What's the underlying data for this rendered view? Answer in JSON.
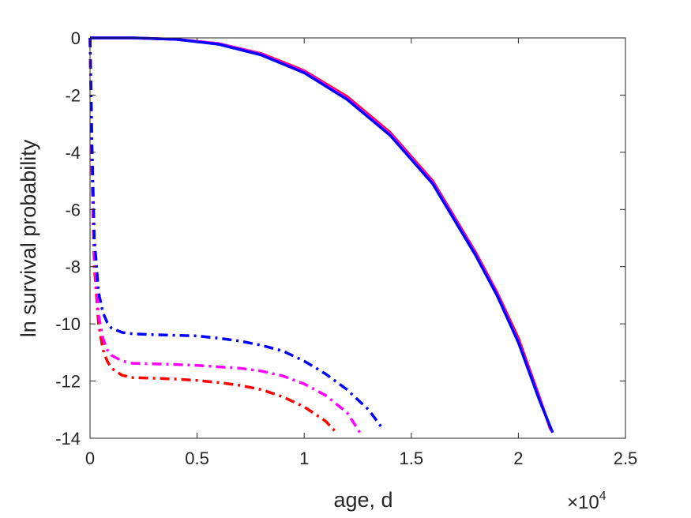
{
  "chart_data": {
    "type": "line",
    "title": "",
    "xlabel": "age, d",
    "ylabel": "ln survival probability",
    "x_exponent_label": {
      "base": "×10",
      "exponent": "4"
    },
    "xlim": [
      0,
      2.5
    ],
    "ylim": [
      -14,
      0
    ],
    "x_ticks": [
      0,
      0.5,
      1,
      1.5,
      2,
      2.5
    ],
    "x_tick_labels": [
      "0",
      "0.5",
      "1",
      "1.5",
      "2",
      "2.5"
    ],
    "y_ticks": [
      0,
      -2,
      -4,
      -6,
      -8,
      -10,
      -12,
      -14
    ],
    "y_tick_labels": [
      "0",
      "-2",
      "-4",
      "-6",
      "-8",
      "-10",
      "-12",
      "-14"
    ],
    "grid": false,
    "series": [
      {
        "style": "solid",
        "color": "#ff0000",
        "x": [
          0,
          0.2,
          0.4,
          0.6,
          0.8,
          1.0,
          1.2,
          1.4,
          1.6,
          1.8,
          1.9,
          2.0,
          2.1,
          2.15
        ],
        "y": [
          0,
          0,
          -0.05,
          -0.2,
          -0.55,
          -1.15,
          -2.05,
          -3.3,
          -5.0,
          -7.5,
          -8.9,
          -10.5,
          -12.6,
          -13.7
        ]
      },
      {
        "style": "solid",
        "color": "#ff00ff",
        "x": [
          0,
          0.2,
          0.4,
          0.6,
          0.8,
          1.0,
          1.2,
          1.4,
          1.6,
          1.8,
          1.9,
          2.0,
          2.1,
          2.155
        ],
        "y": [
          0,
          0,
          -0.05,
          -0.2,
          -0.57,
          -1.18,
          -2.1,
          -3.35,
          -5.05,
          -7.55,
          -8.95,
          -10.6,
          -12.65,
          -13.75
        ]
      },
      {
        "style": "solid",
        "color": "#0000ff",
        "x": [
          0,
          0.2,
          0.4,
          0.6,
          0.8,
          1.0,
          1.2,
          1.4,
          1.6,
          1.8,
          1.9,
          2.0,
          2.1,
          2.16
        ],
        "y": [
          0,
          0,
          -0.05,
          -0.22,
          -0.6,
          -1.22,
          -2.15,
          -3.4,
          -5.1,
          -7.6,
          -9.0,
          -10.65,
          -12.7,
          -13.8
        ]
      },
      {
        "style": "dashdot",
        "color": "#ff0000",
        "x": [
          0,
          0.01,
          0.02,
          0.04,
          0.06,
          0.08,
          0.1,
          0.15,
          0.2,
          0.3,
          0.4,
          0.5,
          0.6,
          0.7,
          0.8,
          0.9,
          1.0,
          1.1,
          1.15
        ],
        "y": [
          0,
          -5.0,
          -8.0,
          -10.0,
          -10.9,
          -11.3,
          -11.55,
          -11.8,
          -11.88,
          -11.9,
          -11.93,
          -11.98,
          -12.05,
          -12.15,
          -12.3,
          -12.55,
          -12.9,
          -13.4,
          -13.8
        ]
      },
      {
        "style": "dashdot",
        "color": "#ff00ff",
        "x": [
          0,
          0.01,
          0.02,
          0.04,
          0.06,
          0.08,
          0.1,
          0.15,
          0.2,
          0.3,
          0.4,
          0.5,
          0.6,
          0.7,
          0.8,
          0.9,
          1.0,
          1.1,
          1.2,
          1.26
        ],
        "y": [
          0,
          -5.0,
          -7.8,
          -9.7,
          -10.5,
          -10.9,
          -11.1,
          -11.3,
          -11.38,
          -11.4,
          -11.42,
          -11.45,
          -11.5,
          -11.55,
          -11.65,
          -11.82,
          -12.1,
          -12.5,
          -13.1,
          -13.8
        ]
      },
      {
        "style": "dashdot",
        "color": "#0000ff",
        "x": [
          0,
          0.01,
          0.02,
          0.04,
          0.06,
          0.08,
          0.1,
          0.15,
          0.2,
          0.3,
          0.4,
          0.5,
          0.6,
          0.7,
          0.8,
          0.9,
          1.0,
          1.1,
          1.2,
          1.3,
          1.37
        ],
        "y": [
          0,
          -4.0,
          -7.0,
          -8.9,
          -9.6,
          -9.95,
          -10.15,
          -10.3,
          -10.35,
          -10.38,
          -10.4,
          -10.42,
          -10.5,
          -10.6,
          -10.75,
          -10.95,
          -11.3,
          -11.75,
          -12.3,
          -13.0,
          -13.7
        ]
      }
    ]
  }
}
